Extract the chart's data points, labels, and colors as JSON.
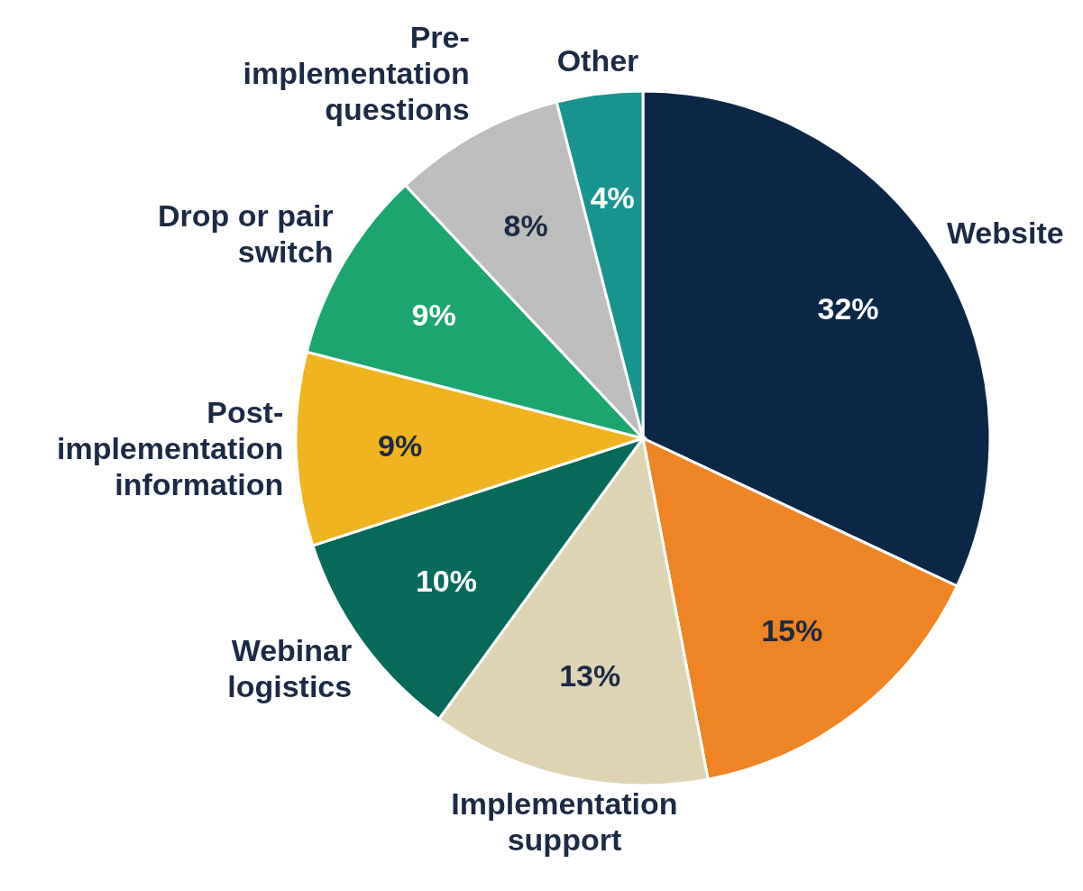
{
  "chart_data": {
    "type": "pie",
    "categories": [
      "Website",
      null,
      "Implementation support",
      "Webinar logistics",
      "Post-implementation information",
      "Drop or pair switch",
      "Pre-implementation questions",
      "Other"
    ],
    "values": [
      32,
      15,
      13,
      10,
      9,
      9,
      8,
      4
    ],
    "value_labels": [
      "32%",
      "15%",
      "13%",
      "10%",
      "9%",
      "9%",
      "8%",
      "4%"
    ],
    "colors": [
      "#0b2747",
      "#ee8424",
      "#ded4b4",
      "#07695a",
      "#efb41f",
      "#1ba56f",
      "#bdbdbd",
      "#17948f"
    ]
  }
}
